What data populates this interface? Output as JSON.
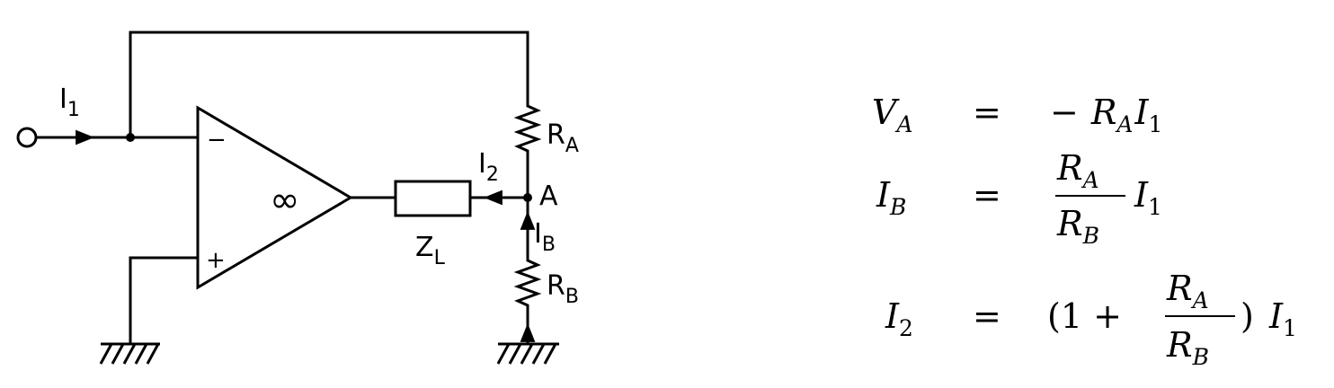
{
  "circuit": {
    "input_current": {
      "main": "I",
      "sub": "1"
    },
    "output_current": {
      "main": "I",
      "sub": "2"
    },
    "branch_current": {
      "main": "I",
      "sub": "B"
    },
    "resistor_a": {
      "main": "R",
      "sub": "A"
    },
    "resistor_b": {
      "main": "R",
      "sub": "B"
    },
    "load": {
      "main": "Z",
      "sub": "L"
    },
    "node_label": "A",
    "opamp_gain": "∞",
    "inverting_sign": "−",
    "noninverting_sign": "+"
  },
  "equations": [
    {
      "lhs": "V",
      "lhs_sub": "A",
      "rel": "=",
      "rhs": "− R_A I_1"
    },
    {
      "lhs": "I",
      "lhs_sub": "B",
      "rel": "=",
      "rhs": "(R_A / R_B) I_1"
    },
    {
      "lhs": "I",
      "lhs_sub": "2",
      "rel": "=",
      "rhs": "(1 + R_A / R_B) I_1"
    }
  ],
  "equation_parts": {
    "minus": "−",
    "one_plus": "(1 +",
    "close_paren": ")",
    "R": "R",
    "I": "I",
    "sub_A": "A",
    "sub_B": "B",
    "sub_1": "1"
  }
}
